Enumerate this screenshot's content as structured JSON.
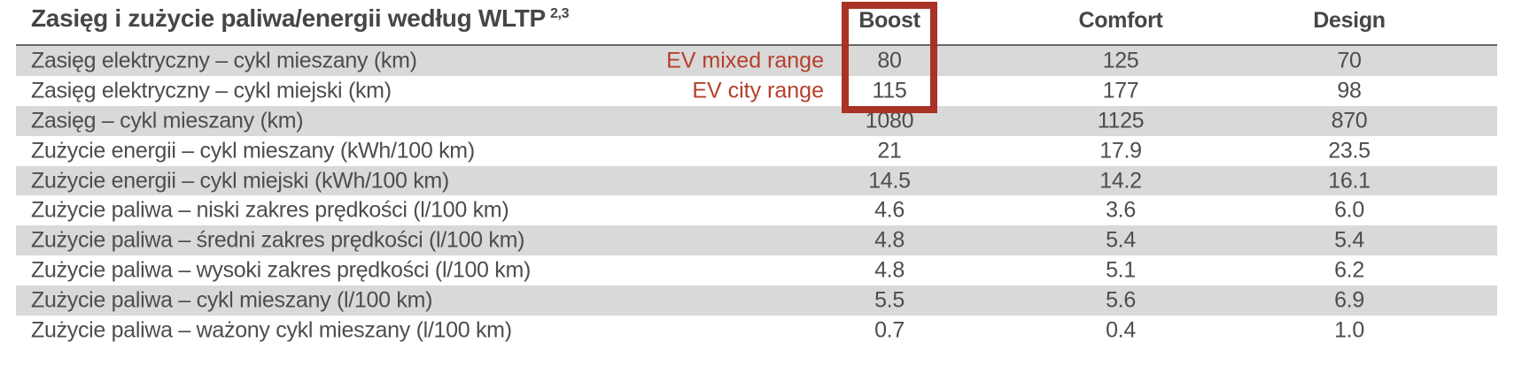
{
  "title": {
    "text": "Zasięg i zużycie paliwa/energii według WLTP",
    "superscript": "2,3"
  },
  "table": {
    "columns": [
      "Boost",
      "Comfort",
      "Design"
    ],
    "rows": [
      {
        "label": "Zasięg elektryczny – cykl mieszany (km)",
        "annotation": "EV mixed range",
        "values": [
          "80",
          "125",
          "70"
        ]
      },
      {
        "label": "Zasięg elektryczny – cykl miejski (km)",
        "annotation": "EV city range",
        "values": [
          "115",
          "177",
          "98"
        ]
      },
      {
        "label": "Zasięg – cykl mieszany (km)",
        "values": [
          "1080",
          "1125",
          "870"
        ]
      },
      {
        "label": "Zużycie energii – cykl mieszany (kWh/100 km)",
        "values": [
          "21",
          "17.9",
          "23.5"
        ]
      },
      {
        "label": "Zużycie energii – cykl miejski (kWh/100 km)",
        "values": [
          "14.5",
          "14.2",
          "16.1"
        ]
      },
      {
        "label": "Zużycie paliwa – niski zakres prędkości (l/100 km)",
        "values": [
          "4.6",
          "3.6",
          "6.0"
        ]
      },
      {
        "label": "Zużycie paliwa – średni zakres prędkości (l/100 km)",
        "values": [
          "4.8",
          "5.4",
          "5.4"
        ]
      },
      {
        "label": "Zużycie paliwa – wysoki zakres prędkości (l/100 km)",
        "values": [
          "4.8",
          "5.1",
          "6.2"
        ]
      },
      {
        "label": "Zużycie paliwa – cykl mieszany (l/100 km)",
        "values": [
          "5.5",
          "5.6",
          "6.9"
        ]
      },
      {
        "label": "Zużycie paliwa – ważony cykl mieszany (l/100 km)",
        "values": [
          "0.7",
          "0.4",
          "1.0"
        ]
      }
    ]
  },
  "highlight": {
    "target_column": "Boost",
    "description": "red rectangle around Boost header and EV range values"
  },
  "colors": {
    "stripe_gray": "#d9d9d9",
    "body_text": "#4d4d4d",
    "title_text": "#464646",
    "annotation_red": "#b5402c",
    "highlight_red": "#a83226",
    "header_rule": "#666666"
  }
}
